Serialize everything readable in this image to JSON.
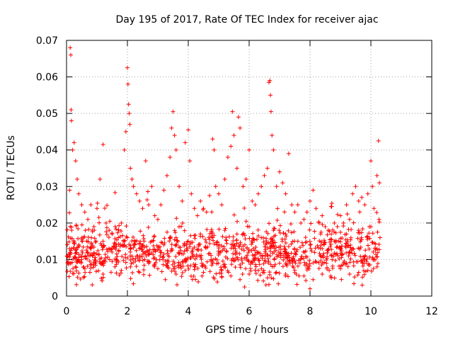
{
  "chart_data": {
    "type": "scatter",
    "title": "Day 195 of 2017, Rate Of TEC Index for receiver ajac",
    "xlabel": "GPS time / hours",
    "ylabel": "ROTI / TECUs",
    "xlim": [
      0,
      12
    ],
    "ylim": [
      0,
      0.07
    ],
    "xticks": [
      0,
      2,
      4,
      6,
      8,
      10,
      12
    ],
    "yticks": [
      0,
      0.01,
      0.02,
      0.03,
      0.04,
      0.05,
      0.06,
      0.07
    ],
    "xtick_labels": [
      "0",
      "2",
      "4",
      "6",
      "8",
      "10",
      "12"
    ],
    "ytick_labels": [
      "0",
      "0.01",
      "0.02",
      "0.03",
      "0.04",
      "0.05",
      "0.06",
      "0.07"
    ],
    "grid": true,
    "marker": "+",
    "color": "#ff0000",
    "series": [
      {
        "name": "ROTI",
        "points": [
          [
            0.05,
            0.0095
          ],
          [
            0.08,
            0.0115
          ],
          [
            0.1,
            0.013
          ],
          [
            0.12,
            0.068
          ],
          [
            0.14,
            0.066
          ],
          [
            0.15,
            0.051
          ],
          [
            0.16,
            0.048
          ],
          [
            0.2,
            0.04
          ],
          [
            0.25,
            0.042
          ],
          [
            0.3,
            0.037
          ],
          [
            0.35,
            0.032
          ],
          [
            0.1,
            0.029
          ],
          [
            0.12,
            0.019
          ],
          [
            0.4,
            0.028
          ],
          [
            0.5,
            0.025
          ],
          [
            0.6,
            0.023
          ],
          [
            0.7,
            0.021
          ],
          [
            0.8,
            0.025
          ],
          [
            0.9,
            0.019
          ],
          [
            1.0,
            0.024
          ],
          [
            1.1,
            0.032
          ],
          [
            1.2,
            0.0415
          ],
          [
            1.3,
            0.02
          ],
          [
            1.4,
            0.018
          ],
          [
            1.5,
            0.017
          ],
          [
            1.6,
            0.019
          ],
          [
            1.7,
            0.016
          ],
          [
            1.8,
            0.02
          ],
          [
            1.9,
            0.04
          ],
          [
            1.95,
            0.045
          ],
          [
            2.0,
            0.0625
          ],
          [
            2.02,
            0.058
          ],
          [
            2.04,
            0.0525
          ],
          [
            2.06,
            0.05
          ],
          [
            2.08,
            0.047
          ],
          [
            2.1,
            0.035
          ],
          [
            2.15,
            0.032
          ],
          [
            2.2,
            0.03
          ],
          [
            2.3,
            0.028
          ],
          [
            2.4,
            0.026
          ],
          [
            2.5,
            0.024
          ],
          [
            2.6,
            0.037
          ],
          [
            2.7,
            0.025
          ],
          [
            2.8,
            0.03
          ],
          [
            2.9,
            0.022
          ],
          [
            3.0,
            0.021
          ],
          [
            3.1,
            0.025
          ],
          [
            3.2,
            0.029
          ],
          [
            3.3,
            0.033
          ],
          [
            3.4,
            0.038
          ],
          [
            3.45,
            0.046
          ],
          [
            3.5,
            0.0505
          ],
          [
            3.55,
            0.044
          ],
          [
            3.6,
            0.04
          ],
          [
            3.7,
            0.03
          ],
          [
            3.8,
            0.026
          ],
          [
            3.9,
            0.042
          ],
          [
            4.0,
            0.0455
          ],
          [
            4.05,
            0.037
          ],
          [
            4.1,
            0.028
          ],
          [
            4.2,
            0.024
          ],
          [
            4.3,
            0.022
          ],
          [
            4.4,
            0.026
          ],
          [
            4.5,
            0.024
          ],
          [
            4.6,
            0.023
          ],
          [
            4.7,
            0.0275
          ],
          [
            4.8,
            0.043
          ],
          [
            4.85,
            0.04
          ],
          [
            4.9,
            0.03
          ],
          [
            5.0,
            0.028
          ],
          [
            5.1,
            0.025
          ],
          [
            5.2,
            0.032
          ],
          [
            5.3,
            0.038
          ],
          [
            5.4,
            0.041
          ],
          [
            5.45,
            0.0505
          ],
          [
            5.5,
            0.044
          ],
          [
            5.6,
            0.035
          ],
          [
            5.65,
            0.049
          ],
          [
            5.7,
            0.046
          ],
          [
            5.8,
            0.03
          ],
          [
            5.9,
            0.032
          ],
          [
            6.0,
            0.04
          ],
          [
            6.1,
            0.026
          ],
          [
            6.2,
            0.025
          ],
          [
            6.3,
            0.028
          ],
          [
            6.4,
            0.03
          ],
          [
            6.5,
            0.033
          ],
          [
            6.6,
            0.035
          ],
          [
            6.65,
            0.0585
          ],
          [
            6.68,
            0.059
          ],
          [
            6.7,
            0.055
          ],
          [
            6.72,
            0.0505
          ],
          [
            6.75,
            0.044
          ],
          [
            6.8,
            0.04
          ],
          [
            6.9,
            0.03
          ],
          [
            7.0,
            0.034
          ],
          [
            7.1,
            0.031
          ],
          [
            7.2,
            0.028
          ],
          [
            7.3,
            0.039
          ],
          [
            7.4,
            0.025
          ],
          [
            7.5,
            0.023
          ],
          [
            7.6,
            0.025
          ],
          [
            7.7,
            0.02
          ],
          [
            7.8,
            0.021
          ],
          [
            7.9,
            0.023
          ],
          [
            8.0,
            0.026
          ],
          [
            8.1,
            0.029
          ],
          [
            8.2,
            0.024
          ],
          [
            8.3,
            0.02
          ],
          [
            8.4,
            0.022
          ],
          [
            8.5,
            0.019
          ],
          [
            8.6,
            0.018
          ],
          [
            8.7,
            0.017
          ],
          [
            8.8,
            0.02
          ],
          [
            8.9,
            0.019
          ],
          [
            9.0,
            0.022
          ],
          [
            9.1,
            0.02
          ],
          [
            9.2,
            0.025
          ],
          [
            9.3,
            0.021
          ],
          [
            9.4,
            0.028
          ],
          [
            9.5,
            0.03
          ],
          [
            9.6,
            0.026
          ],
          [
            9.7,
            0.027
          ],
          [
            9.8,
            0.025
          ],
          [
            9.9,
            0.028
          ],
          [
            10.0,
            0.037
          ],
          [
            10.05,
            0.03
          ],
          [
            10.1,
            0.024
          ],
          [
            10.2,
            0.033
          ],
          [
            10.25,
            0.0425
          ],
          [
            10.28,
            0.031
          ],
          [
            0.3,
            0.008
          ],
          [
            0.6,
            0.0075
          ],
          [
            0.9,
            0.0085
          ],
          [
            1.2,
            0.006
          ],
          [
            1.5,
            0.0095
          ],
          [
            1.8,
            0.007
          ],
          [
            2.1,
            0.008
          ],
          [
            2.4,
            0.0065
          ],
          [
            2.7,
            0.009
          ],
          [
            3.0,
            0.0075
          ],
          [
            3.3,
            0.0085
          ],
          [
            3.6,
            0.006
          ],
          [
            3.9,
            0.007
          ],
          [
            4.2,
            0.008
          ],
          [
            4.5,
            0.0065
          ],
          [
            4.8,
            0.009
          ],
          [
            5.1,
            0.007
          ],
          [
            5.4,
            0.0055
          ],
          [
            5.7,
            0.0045
          ],
          [
            5.85,
            0.0025
          ],
          [
            6.0,
            0.006
          ],
          [
            6.3,
            0.007
          ],
          [
            6.6,
            0.005
          ],
          [
            6.9,
            0.0065
          ],
          [
            7.2,
            0.006
          ],
          [
            7.5,
            0.007
          ],
          [
            7.8,
            0.0055
          ],
          [
            8.0,
            0.002
          ],
          [
            8.1,
            0.0045
          ],
          [
            8.4,
            0.006
          ],
          [
            8.7,
            0.005
          ],
          [
            9.0,
            0.0075
          ],
          [
            9.3,
            0.006
          ],
          [
            9.6,
            0.0065
          ],
          [
            9.9,
            0.007
          ],
          [
            10.2,
            0.008
          ],
          [
            0.4,
            0.014
          ],
          [
            0.8,
            0.013
          ],
          [
            1.2,
            0.015
          ],
          [
            1.6,
            0.014
          ],
          [
            2.0,
            0.016
          ],
          [
            2.4,
            0.013
          ],
          [
            2.8,
            0.015
          ],
          [
            3.2,
            0.014
          ],
          [
            3.6,
            0.016
          ],
          [
            4.0,
            0.015
          ],
          [
            4.4,
            0.017
          ],
          [
            4.8,
            0.016
          ],
          [
            5.2,
            0.018
          ],
          [
            5.6,
            0.017
          ],
          [
            6.0,
            0.019
          ],
          [
            6.4,
            0.016
          ],
          [
            6.8,
            0.018
          ],
          [
            7.2,
            0.017
          ],
          [
            7.6,
            0.015
          ],
          [
            8.0,
            0.014
          ],
          [
            8.4,
            0.013
          ],
          [
            8.8,
            0.015
          ],
          [
            9.2,
            0.017
          ],
          [
            9.6,
            0.018
          ],
          [
            10.0,
            0.019
          ],
          [
            10.3,
            0.016
          ]
        ]
      }
    ]
  }
}
